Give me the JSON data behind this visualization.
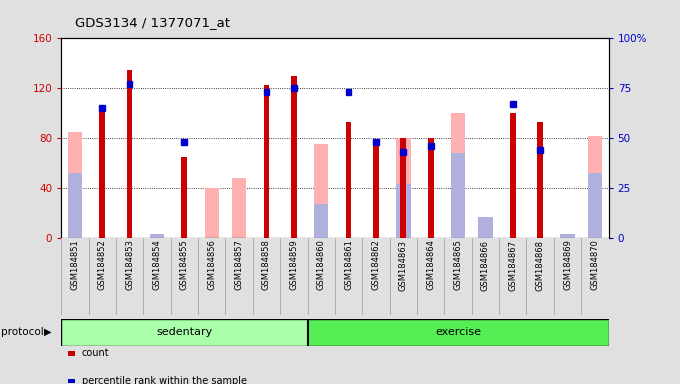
{
  "title": "GDS3134 / 1377071_at",
  "samples": [
    "GSM184851",
    "GSM184852",
    "GSM184853",
    "GSM184854",
    "GSM184855",
    "GSM184856",
    "GSM184857",
    "GSM184858",
    "GSM184859",
    "GSM184860",
    "GSM184861",
    "GSM184862",
    "GSM184863",
    "GSM184864",
    "GSM184865",
    "GSM184866",
    "GSM184867",
    "GSM184868",
    "GSM184869",
    "GSM184870"
  ],
  "count": [
    0,
    107,
    135,
    0,
    65,
    0,
    0,
    123,
    130,
    0,
    93,
    77,
    80,
    80,
    0,
    0,
    100,
    93,
    0,
    0
  ],
  "percentile_rank": [
    0,
    65,
    77,
    0,
    48,
    0,
    0,
    73,
    75,
    0,
    73,
    48,
    43,
    46,
    0,
    0,
    67,
    44,
    0,
    0
  ],
  "value_absent": [
    85,
    0,
    0,
    0,
    0,
    40,
    48,
    0,
    0,
    75,
    0,
    0,
    80,
    0,
    100,
    12,
    0,
    0,
    0,
    82
  ],
  "rank_absent": [
    52,
    0,
    0,
    3,
    0,
    0,
    0,
    0,
    0,
    27,
    0,
    0,
    43,
    0,
    68,
    17,
    0,
    0,
    3,
    52
  ],
  "protocol_groups": [
    {
      "label": "sedentary",
      "start": 0,
      "end": 9
    },
    {
      "label": "exercise",
      "start": 9,
      "end": 20
    }
  ],
  "ylim_left": [
    0,
    160
  ],
  "ylim_right": [
    0,
    100
  ],
  "yticks_left": [
    0,
    40,
    80,
    120,
    160
  ],
  "yticks_right": [
    0,
    25,
    50,
    75,
    100
  ],
  "bg_color": "#e0e0e0",
  "plot_bg_color": "#ffffff",
  "bar_width": 0.35,
  "thin_bar_width": 0.35,
  "color_count": "#cc0000",
  "color_rank": "#0000cc",
  "color_value_absent": "#ffb0b0",
  "color_rank_absent": "#b0b0dd",
  "sedentary_color": "#aaffaa",
  "exercise_color": "#55ee55"
}
